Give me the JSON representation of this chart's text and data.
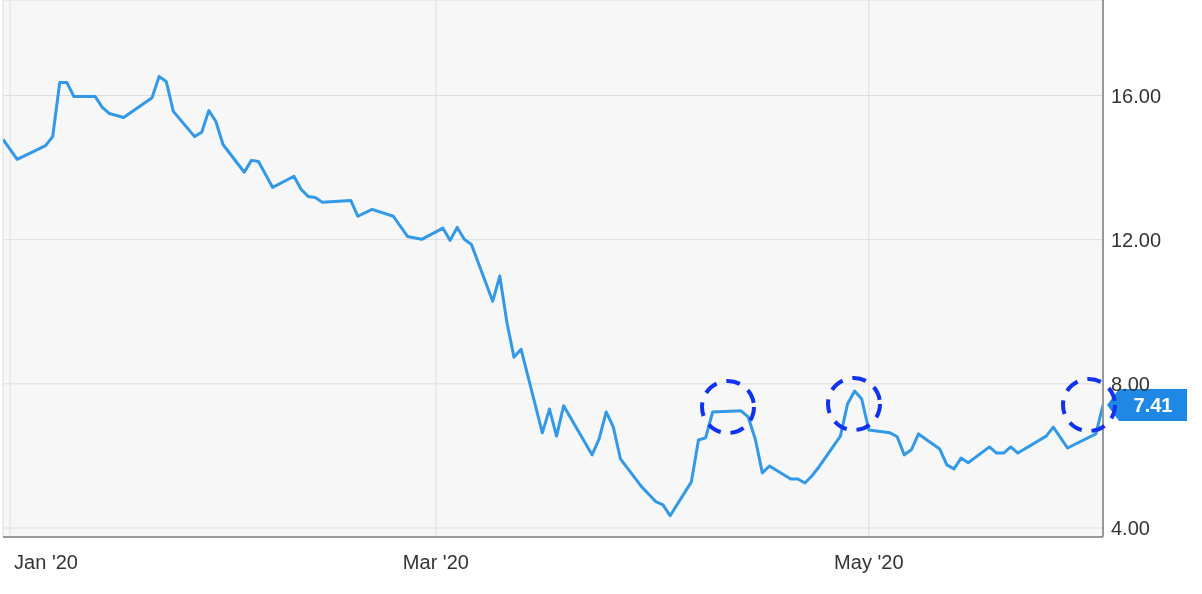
{
  "chart_data": {
    "type": "line",
    "x": [
      "2019-12-31",
      "2020-01-02",
      "2020-01-06",
      "2020-01-07",
      "2020-01-08",
      "2020-01-09",
      "2020-01-10",
      "2020-01-13",
      "2020-01-14",
      "2020-01-15",
      "2020-01-17",
      "2020-01-21",
      "2020-01-22",
      "2020-01-23",
      "2020-01-24",
      "2020-01-27",
      "2020-01-28",
      "2020-01-29",
      "2020-01-30",
      "2020-01-31",
      "2020-02-03",
      "2020-02-04",
      "2020-02-05",
      "2020-02-07",
      "2020-02-10",
      "2020-02-11",
      "2020-02-12",
      "2020-02-13",
      "2020-02-14",
      "2020-02-18",
      "2020-02-19",
      "2020-02-21",
      "2020-02-24",
      "2020-02-26",
      "2020-02-28",
      "2020-03-02",
      "2020-03-03",
      "2020-03-04",
      "2020-03-05",
      "2020-03-06",
      "2020-03-09",
      "2020-03-10",
      "2020-03-11",
      "2020-03-12",
      "2020-03-13",
      "2020-03-16",
      "2020-03-17",
      "2020-03-18",
      "2020-03-19",
      "2020-03-23",
      "2020-03-24",
      "2020-03-25",
      "2020-03-26",
      "2020-03-27",
      "2020-03-30",
      "2020-04-01",
      "2020-04-02",
      "2020-04-03",
      "2020-04-06",
      "2020-04-07",
      "2020-04-08",
      "2020-04-09",
      "2020-04-13",
      "2020-04-14",
      "2020-04-15",
      "2020-04-16",
      "2020-04-17",
      "2020-04-20",
      "2020-04-21",
      "2020-04-22",
      "2020-04-23",
      "2020-04-24",
      "2020-04-27",
      "2020-04-28",
      "2020-04-29",
      "2020-04-30",
      "2020-05-01",
      "2020-05-04",
      "2020-05-05",
      "2020-05-06",
      "2020-05-07",
      "2020-05-08",
      "2020-05-11",
      "2020-05-12",
      "2020-05-13",
      "2020-05-14",
      "2020-05-15",
      "2020-05-18",
      "2020-05-19",
      "2020-05-20",
      "2020-05-21",
      "2020-05-22",
      "2020-05-26",
      "2020-05-27",
      "2020-05-29",
      "2020-06-02",
      "2020-06-03"
    ],
    "series": [
      {
        "color": "#3399e6",
        "values": [
          14.78,
          14.23,
          14.61,
          14.86,
          16.36,
          16.36,
          15.97,
          15.97,
          15.67,
          15.5,
          15.39,
          15.94,
          16.53,
          16.39,
          15.56,
          14.86,
          14.98,
          15.58,
          15.28,
          14.64,
          13.87,
          14.2,
          14.17,
          13.45,
          13.76,
          13.4,
          13.2,
          13.17,
          13.04,
          13.09,
          12.65,
          12.84,
          12.65,
          12.09,
          12.01,
          12.32,
          11.98,
          12.34,
          12.01,
          11.87,
          10.29,
          10.99,
          9.71,
          8.74,
          8.96,
          6.64,
          7.3,
          6.55,
          7.39,
          6.03,
          6.47,
          7.22,
          6.8,
          5.92,
          5.14,
          4.73,
          4.64,
          4.34,
          5.28,
          6.44,
          6.5,
          7.22,
          7.25,
          7.08,
          6.47,
          5.53,
          5.72,
          5.36,
          5.36,
          5.25,
          5.45,
          5.7,
          6.55,
          7.44,
          7.8,
          7.58,
          6.72,
          6.64,
          6.53,
          6.03,
          6.17,
          6.61,
          6.19,
          5.75,
          5.64,
          5.94,
          5.81,
          6.25,
          6.08,
          6.08,
          6.25,
          6.08,
          6.55,
          6.8,
          6.22,
          6.61,
          7.41
        ]
      }
    ],
    "xlim": [
      "2019-12-31",
      "2020-06-03"
    ],
    "xticks": [
      {
        "value": "2020-01-01",
        "label": "Jan '20"
      },
      {
        "value": "2020-03-01",
        "label": "Mar '20"
      },
      {
        "value": "2020-05-01",
        "label": "May '20"
      }
    ],
    "ylim": [
      3.75,
      18.65
    ],
    "yticks": [
      {
        "value": 4,
        "label": "4.00"
      },
      {
        "value": 8,
        "label": "8.00"
      },
      {
        "value": 12,
        "label": "12.00"
      },
      {
        "value": 16,
        "label": "16.00"
      }
    ],
    "grid": true,
    "annotations": [
      {
        "text": "7.41",
        "x": "2020-06-03",
        "y": 7.41
      }
    ]
  }
}
